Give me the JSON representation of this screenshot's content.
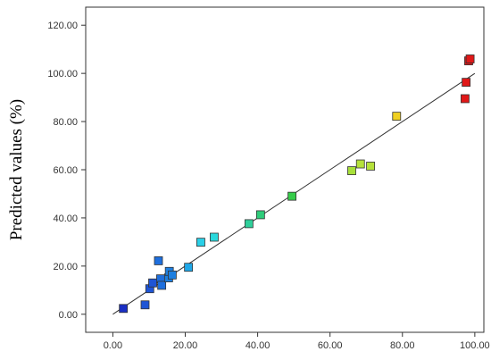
{
  "chart_data": {
    "type": "scatter",
    "title": "",
    "xlabel": "",
    "ylabel": "Predicted values (%)",
    "xlim": [
      -7.5,
      102.5
    ],
    "ylim": [
      -7.5,
      127.5
    ],
    "x_ticks": [
      0,
      20,
      40,
      60,
      80,
      100
    ],
    "y_ticks": [
      0,
      20,
      40,
      60,
      80,
      100,
      120
    ],
    "x_tick_labels": [
      "0.00",
      "20.00",
      "40.00",
      "60.00",
      "80.00",
      "100.00"
    ],
    "y_tick_labels": [
      "0.00",
      "20.00",
      "40.00",
      "60.00",
      "80.00",
      "100.00",
      "120.00"
    ],
    "grid": false,
    "reference_line": {
      "x": [
        0,
        100
      ],
      "y": [
        0,
        100
      ]
    },
    "points": [
      {
        "x": 2.9,
        "y": 2.4,
        "color": "#1a2fc4"
      },
      {
        "x": 8.9,
        "y": 3.9,
        "color": "#1e55d6"
      },
      {
        "x": 10.2,
        "y": 10.6,
        "color": "#1e55d6"
      },
      {
        "x": 11.0,
        "y": 13.0,
        "color": "#1e55d6"
      },
      {
        "x": 12.6,
        "y": 22.2,
        "color": "#1e6fde"
      },
      {
        "x": 13.2,
        "y": 14.7,
        "color": "#1e6fde"
      },
      {
        "x": 13.5,
        "y": 12.0,
        "color": "#1e6fde"
      },
      {
        "x": 15.4,
        "y": 15.1,
        "color": "#1e7fe0"
      },
      {
        "x": 15.6,
        "y": 17.8,
        "color": "#1e7fe0"
      },
      {
        "x": 16.4,
        "y": 16.3,
        "color": "#1e7fe0"
      },
      {
        "x": 20.9,
        "y": 19.5,
        "color": "#20a8e8"
      },
      {
        "x": 24.3,
        "y": 29.9,
        "color": "#2ad0e8"
      },
      {
        "x": 28.0,
        "y": 32.0,
        "color": "#2ad8dc"
      },
      {
        "x": 37.6,
        "y": 37.6,
        "color": "#2ecf9a"
      },
      {
        "x": 40.8,
        "y": 41.3,
        "color": "#2ecc7a"
      },
      {
        "x": 49.5,
        "y": 49.0,
        "color": "#36cc4a"
      },
      {
        "x": 66.0,
        "y": 59.6,
        "color": "#a8e03a"
      },
      {
        "x": 68.4,
        "y": 62.4,
        "color": "#b6e23a"
      },
      {
        "x": 71.2,
        "y": 61.5,
        "color": "#b6e23a"
      },
      {
        "x": 78.4,
        "y": 82.2,
        "color": "#f0d022"
      },
      {
        "x": 97.3,
        "y": 89.5,
        "color": "#e01818"
      },
      {
        "x": 97.6,
        "y": 96.3,
        "color": "#e01818"
      },
      {
        "x": 98.3,
        "y": 105.2,
        "color": "#e01818"
      },
      {
        "x": 98.7,
        "y": 106.0,
        "color": "#e01818"
      }
    ]
  }
}
